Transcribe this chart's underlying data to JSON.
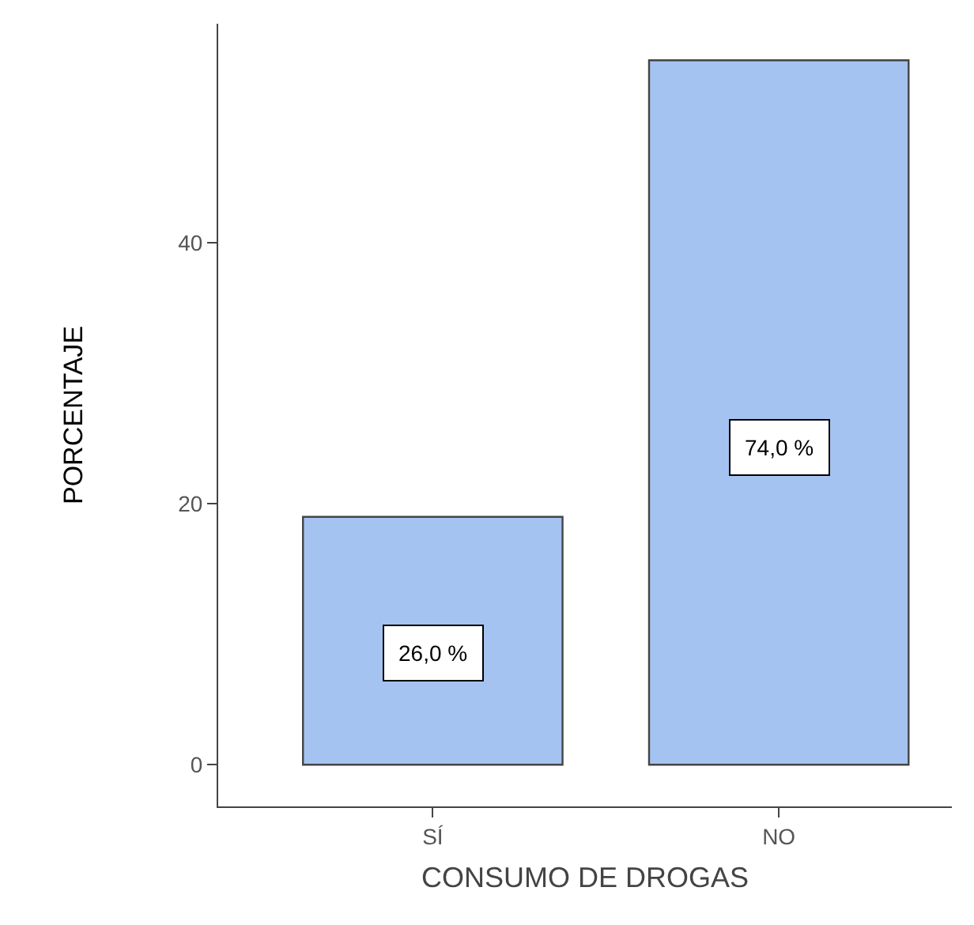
{
  "chart_data": {
    "type": "bar",
    "xlabel": "CONSUMO DE DROGAS",
    "ylabel": "PORCENTAJE",
    "categories": [
      "SÍ",
      "NO"
    ],
    "values": [
      19,
      54
    ],
    "annotations": [
      "26,0 %",
      "74,0 %"
    ],
    "color": "#a5c3f1",
    "ylim": [
      -3.2,
      56.8
    ],
    "yticks": [
      0,
      20,
      40
    ]
  }
}
